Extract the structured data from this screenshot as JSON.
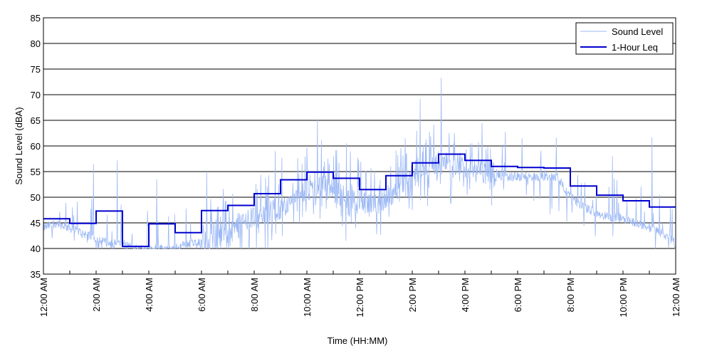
{
  "chart_data": {
    "type": "line",
    "title": "",
    "xlabel": "Time (HH:MM)",
    "ylabel": "Sound Level (dBA)",
    "xlim": [
      0,
      24
    ],
    "ylim": [
      35,
      85
    ],
    "yticks": [
      35,
      40,
      45,
      50,
      55,
      60,
      65,
      70,
      75,
      80,
      85
    ],
    "xtick_labels": [
      "12:00 AM",
      "2:00 AM",
      "4:00 AM",
      "6:00 AM",
      "8:00 AM",
      "10:00 AM",
      "12:00 PM",
      "2:00 PM",
      "4:00 PM",
      "6:00 PM",
      "8:00 PM",
      "10:00 PM",
      "12:00 AM"
    ],
    "grid": "horizontal",
    "legend_position": "top-right",
    "series": [
      {
        "name": "Sound Level",
        "color": "#9db9f5",
        "style": "thin-line",
        "x": [
          0,
          0.5,
          1,
          1.5,
          2,
          2.5,
          3,
          3.5,
          4,
          4.5,
          5,
          5.5,
          6,
          6.5,
          7,
          7.5,
          8,
          8.5,
          9,
          9.5,
          10,
          10.5,
          11,
          11.5,
          12,
          12.5,
          13,
          13.5,
          14,
          14.5,
          15,
          15.5,
          16,
          16.5,
          17,
          17.5,
          18,
          18.5,
          19,
          19.5,
          20,
          20.5,
          21,
          21.5,
          22,
          22.5,
          23,
          23.5,
          24
        ],
        "values": [
          44,
          45,
          44,
          43,
          42,
          41,
          41,
          40,
          40,
          40,
          40,
          41,
          41,
          42,
          43,
          45,
          46,
          47,
          48,
          49,
          51,
          52,
          51,
          50,
          49,
          48,
          50,
          51,
          53,
          55,
          57,
          56,
          56,
          55,
          55,
          54,
          54,
          54,
          54,
          54,
          50,
          48,
          47,
          46,
          46,
          45,
          44,
          43,
          41
        ]
      },
      {
        "name": "1-Hour Leq",
        "color": "#0000d0",
        "style": "step",
        "values": [
          45.8,
          44.9,
          47.3,
          40.4,
          44.8,
          43.1,
          47.4,
          48.4,
          50.7,
          53.4,
          54.9,
          53.7,
          51.5,
          54.2,
          56.7,
          58.4,
          57.2,
          56.0,
          55.8,
          55.7,
          52.2,
          50.4,
          49.3,
          48.1
        ]
      }
    ],
    "peaks": [
      {
        "x": 1.1,
        "value": 48
      },
      {
        "x": 1.9,
        "value": 56.5
      },
      {
        "x": 2.8,
        "value": 57.2
      },
      {
        "x": 4.3,
        "value": 53.5
      },
      {
        "x": 6.2,
        "value": 55
      },
      {
        "x": 8.8,
        "value": 59
      },
      {
        "x": 10.4,
        "value": 65.2
      },
      {
        "x": 11.5,
        "value": 60.5
      },
      {
        "x": 14.3,
        "value": 69.2
      },
      {
        "x": 15.1,
        "value": 73.3
      },
      {
        "x": 15.6,
        "value": 62.5
      },
      {
        "x": 16.2,
        "value": 60.5
      },
      {
        "x": 21.6,
        "value": 58
      },
      {
        "x": 23.1,
        "value": 61.7
      }
    ]
  }
}
